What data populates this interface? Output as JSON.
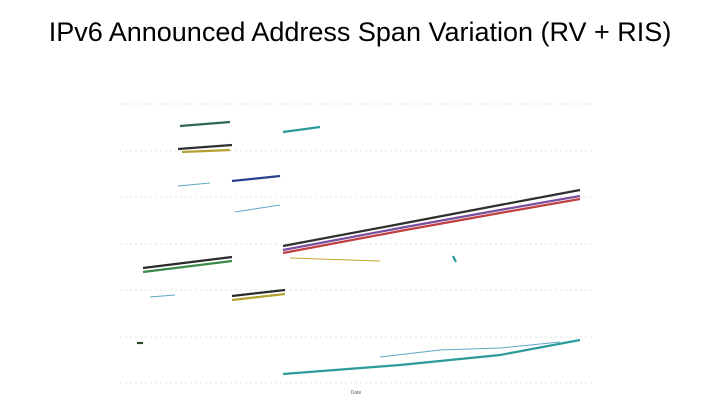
{
  "slide": {
    "title": "IPv6 Announced Address Span Variation (RV + RIS)"
  },
  "chart_image": {
    "x_label": "Date"
  }
}
